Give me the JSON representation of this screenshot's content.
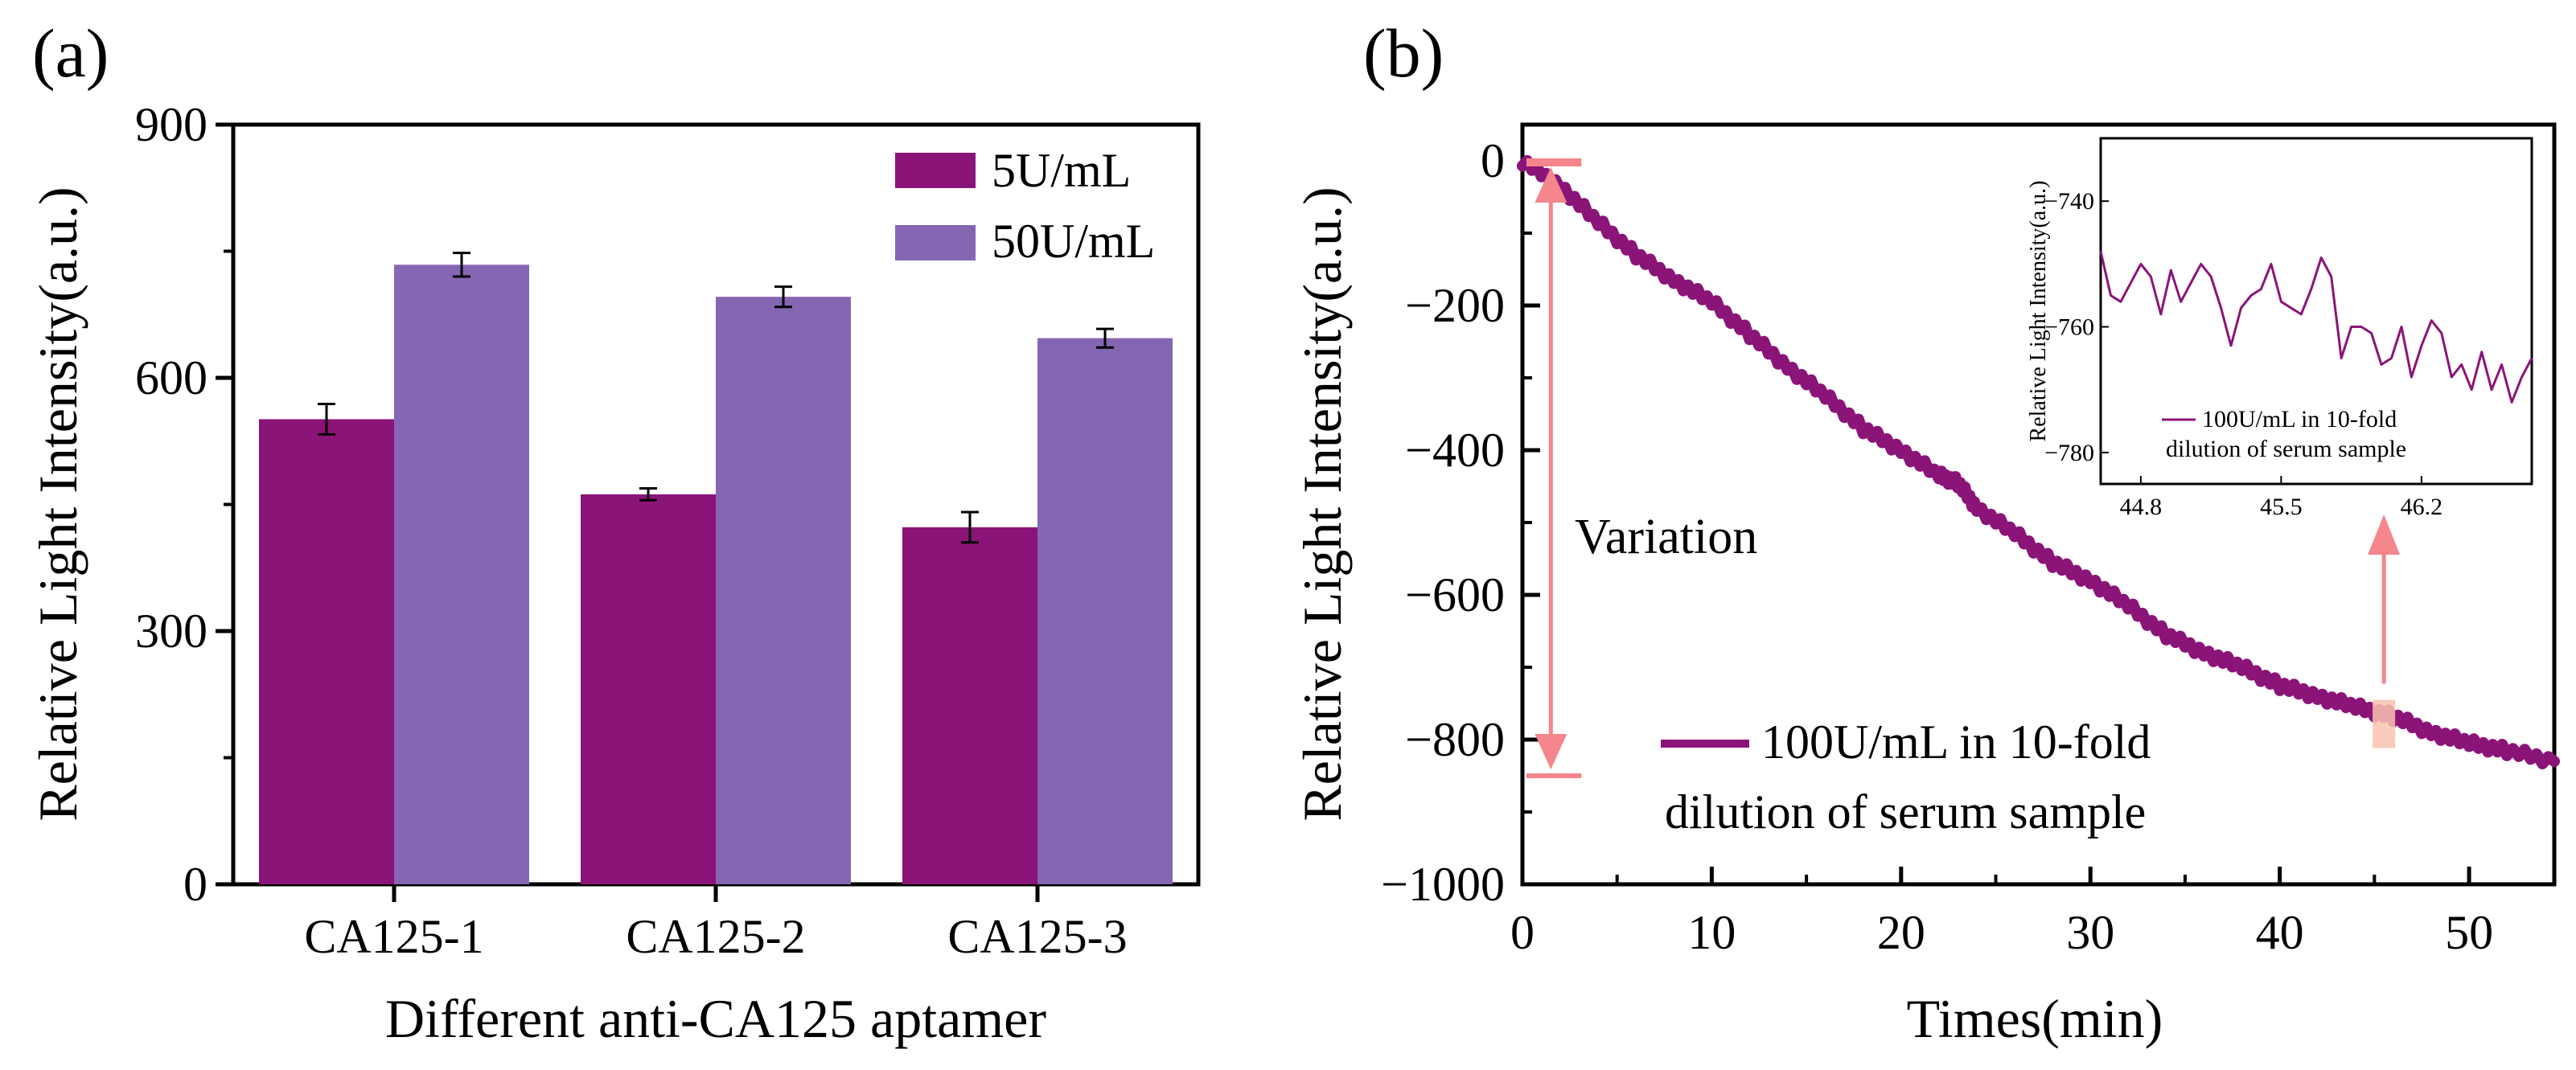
{
  "chart_data": [
    {
      "panel_label": "(a)",
      "type": "bar",
      "title": "",
      "xlabel": "Different anti-CA125 aptamer",
      "ylabel": "Relative Light Intensity(a.u.)",
      "ylim": [
        0,
        900
      ],
      "yticks": [
        "0",
        "300",
        "600",
        "900"
      ],
      "categories": [
        "CA125-1",
        "CA125-2",
        "CA125-3"
      ],
      "series": [
        {
          "name": "5U/mL",
          "color": "#8B1478",
          "values": [
            551,
            462,
            423
          ],
          "errors": [
            18,
            7,
            18
          ]
        },
        {
          "name": "50U/mL",
          "color": "#8566B3",
          "values": [
            734,
            696,
            647
          ],
          "errors": [
            14,
            12,
            11
          ]
        }
      ],
      "legend_position": "top-right"
    },
    {
      "panel_label": "(b)",
      "type": "line",
      "xlabel": "Times(min)",
      "ylabel": "Relative Light Intensity(a.u.)",
      "xlim": [
        0,
        54.5
      ],
      "ylim": [
        -1000,
        50
      ],
      "xticks": [
        "0",
        "10",
        "20",
        "30",
        "40",
        "50"
      ],
      "yticks": [
        "0",
        "−200",
        "−400",
        "−600",
        "−800",
        "−1000"
      ],
      "series": [
        {
          "name": "100U/mL in 10-fold dilution of serum sample",
          "color": "#8B1478",
          "x": [
            0,
            2,
            4,
            6,
            8,
            10,
            12,
            14,
            16,
            18,
            20,
            22,
            23,
            24,
            26,
            28,
            30,
            32,
            34,
            36,
            38,
            40,
            42,
            44,
            46,
            48,
            50,
            52,
            54.5
          ],
          "y": [
            0,
            -35,
            -85,
            -130,
            -165,
            -195,
            -240,
            -285,
            -325,
            -370,
            -400,
            -435,
            -445,
            -480,
            -515,
            -555,
            -580,
            -615,
            -655,
            -680,
            -700,
            -725,
            -740,
            -755,
            -768,
            -790,
            -805,
            -815,
            -830
          ]
        }
      ],
      "legend": {
        "line1": "100U/mL in 10-fold",
        "line2": "dilution of serum sample"
      },
      "annotations": [
        {
          "text": "Variation",
          "arrow_from_y": 0,
          "arrow_to_y": -850,
          "x": 1.5
        }
      ],
      "highlight_x": 45.5,
      "inset": {
        "ylabel": "Relative Light Intensity(a.u.)",
        "xlim": [
          44.6,
          46.75
        ],
        "ylim": [
          -785,
          -730
        ],
        "xticks": [
          "44.8",
          "45.5",
          "46.2"
        ],
        "yticks": [
          "−740",
          "−760",
          "−780"
        ],
        "legend": {
          "line1": "100U/mL in 10-fold",
          "line2": "dilution of serum sample"
        },
        "x": [
          44.6,
          44.65,
          44.7,
          44.75,
          44.8,
          44.85,
          44.9,
          44.95,
          45.0,
          45.05,
          45.1,
          45.15,
          45.2,
          45.25,
          45.3,
          45.35,
          45.4,
          45.45,
          45.5,
          45.55,
          45.6,
          45.65,
          45.7,
          45.75,
          45.8,
          45.85,
          45.9,
          45.95,
          46.0,
          46.05,
          46.1,
          46.15,
          46.2,
          46.25,
          46.3,
          46.35,
          46.4,
          46.45,
          46.5,
          46.55,
          46.6,
          46.65,
          46.7,
          46.75
        ],
        "y": [
          -748,
          -755,
          -756,
          -753,
          -750,
          -752,
          -758,
          -751,
          -756,
          -753,
          -750,
          -752,
          -757,
          -763,
          -757,
          -755,
          -754,
          -750,
          -756,
          -757,
          -758,
          -754,
          -749,
          -752,
          -765,
          -760,
          -760,
          -761,
          -766,
          -765,
          -760,
          -768,
          -763,
          -759,
          -761,
          -768,
          -766,
          -770,
          -764,
          -770,
          -766,
          -772,
          -768,
          -765
        ]
      }
    }
  ]
}
